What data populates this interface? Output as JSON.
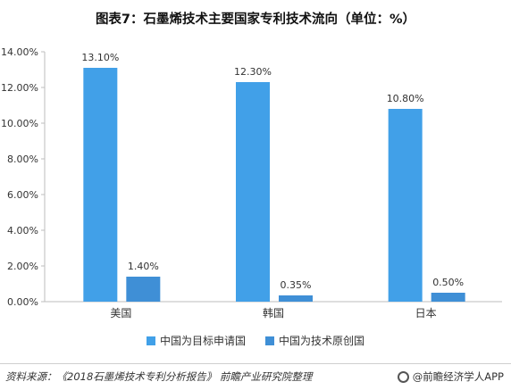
{
  "title": "图表7：石墨烯技术主要国家专利技术流向（单位：%）",
  "chart_data": {
    "type": "bar",
    "categories": [
      "美国",
      "韩国",
      "日本"
    ],
    "series": [
      {
        "name": "中国为目标申请国",
        "values": [
          13.1,
          12.3,
          10.8
        ],
        "labels": [
          "13.10%",
          "12.30%",
          "10.80%"
        ],
        "color": "#41a0e8"
      },
      {
        "name": "中国为技术原创国",
        "values": [
          1.4,
          0.35,
          0.5
        ],
        "labels": [
          "1.40%",
          "0.35%",
          "0.50%"
        ],
        "color": "#3f8fd6"
      }
    ],
    "ylim": [
      0,
      14
    ],
    "yticks": [
      0,
      2,
      4,
      6,
      8,
      10,
      12,
      14
    ],
    "ytick_labels": [
      "0.00%",
      "2.00%",
      "4.00%",
      "6.00%",
      "8.00%",
      "10.00%",
      "12.00%",
      "14.00%"
    ],
    "grid": false,
    "legend_position": "bottom"
  },
  "footer": {
    "source": "资料来源：《2018石墨烯技术专利分析报告》 前瞻产业研究院整理",
    "brand": "@前瞻经济学人APP"
  }
}
